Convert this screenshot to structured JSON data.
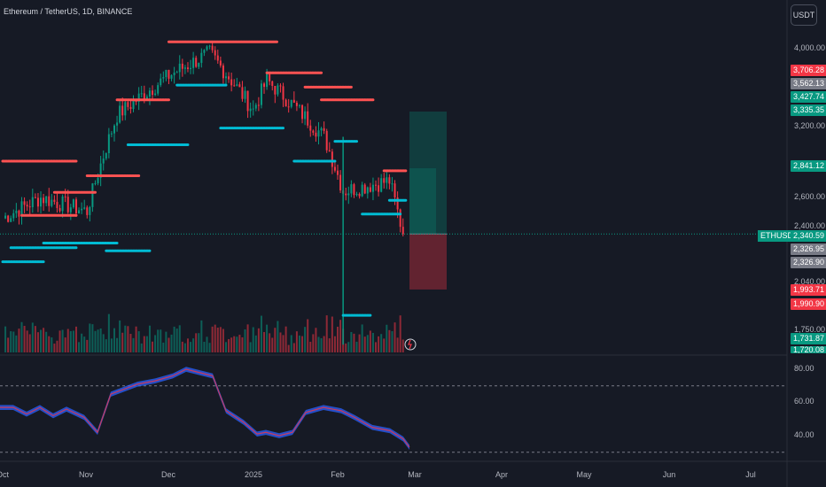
{
  "header": {
    "title": "Ethereum / TetherUS, 1D, BINANCE",
    "currency_button": "USDT"
  },
  "colors": {
    "background": "#161a25",
    "up": "#089981",
    "down": "#f23645",
    "resistance": "#ff5252",
    "support": "#00bcd4",
    "grid": "#2a2e39"
  },
  "price_axis": {
    "ticks": [
      "4,000.00",
      "3,200.00",
      "2,600.00",
      "2,400.00",
      "2,040.00",
      "1,750.00"
    ],
    "markers": [
      {
        "label": "3,706.28",
        "kind": "down"
      },
      {
        "label": "3,562.13",
        "kind": "gray"
      },
      {
        "label": "3,427.74",
        "kind": "up"
      },
      {
        "label": "3,335.35",
        "kind": "up"
      },
      {
        "label": "2,841.12",
        "kind": "up"
      },
      {
        "label": "2,340.59",
        "kind": "up"
      },
      {
        "label": "2,326.95",
        "kind": "gray"
      },
      {
        "label": "2,326.90",
        "kind": "gray"
      },
      {
        "label": "1,993.71",
        "kind": "down"
      },
      {
        "label": "1,990.90",
        "kind": "down"
      },
      {
        "label": "1,731.87",
        "kind": "up"
      },
      {
        "label": "1,720.08",
        "kind": "up"
      }
    ],
    "symbol_tag": "ETHUSDT"
  },
  "oscillator_axis": {
    "ticks": [
      "80.00",
      "60.00",
      "40.00"
    ]
  },
  "time_axis": {
    "labels": [
      "Oct",
      "Nov",
      "Dec",
      "2025",
      "Feb",
      "Mar",
      "Apr",
      "May",
      "Jun",
      "Jul"
    ]
  },
  "position_tool": {
    "entry": 2340.59,
    "target": 3335.35,
    "stop": 1993.71
  },
  "chart_data": {
    "type": "candlestick",
    "symbol": "ETHUSDT",
    "interval": "1D",
    "exchange": "BINANCE",
    "last_price": 2340.59,
    "price_range": [
      1700,
      4200
    ],
    "price_scale": "log",
    "ohlc_anchor_points": [
      {
        "date": "2024-10-01",
        "close": 2450
      },
      {
        "date": "2024-10-15",
        "close": 2600
      },
      {
        "date": "2024-11-01",
        "close": 2500
      },
      {
        "date": "2024-11-12",
        "close": 3300
      },
      {
        "date": "2024-12-01",
        "close": 3700
      },
      {
        "date": "2024-12-16",
        "close": 3950
      },
      {
        "date": "2025-01-01",
        "close": 3350
      },
      {
        "date": "2025-01-06",
        "close": 3650
      },
      {
        "date": "2025-01-27",
        "close": 3100
      },
      {
        "date": "2025-02-03",
        "close": 2650
      },
      {
        "date": "2025-02-20",
        "close": 2730
      },
      {
        "date": "2025-02-25",
        "close": 2340
      }
    ],
    "oscillator": {
      "range": [
        30,
        85
      ],
      "levels": [
        70,
        30
      ]
    }
  }
}
